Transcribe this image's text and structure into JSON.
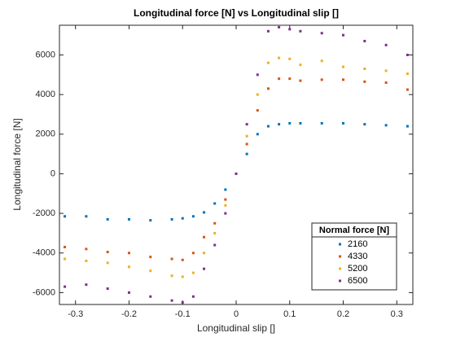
{
  "chart_data": {
    "type": "scatter",
    "title": "Longitudinal force [N] vs Longitudinal slip []",
    "x_label": "Longitudinal slip []",
    "y_label": "Longitudinal force [N]",
    "x": [
      -0.32,
      -0.28,
      -0.24,
      -0.2,
      -0.16,
      -0.12,
      -0.1,
      -0.08,
      -0.06,
      -0.04,
      -0.02,
      0,
      0.02,
      0.04,
      0.06,
      0.08,
      0.1,
      0.12,
      0.16,
      0.2,
      0.24,
      0.28,
      0.32
    ],
    "series": [
      {
        "name": "2160",
        "color": "#0072BD",
        "values": [
          -2150,
          -2150,
          -2300,
          -2300,
          -2350,
          -2300,
          -2250,
          -2150,
          -1950,
          -1500,
          -800,
          0,
          1000,
          2000,
          2400,
          2500,
          2550,
          2550,
          2550,
          2550,
          2500,
          2450,
          2400
        ]
      },
      {
        "name": "4330",
        "color": "#D95319",
        "values": [
          -3700,
          -3800,
          -3950,
          -4000,
          -4200,
          -4300,
          -4350,
          -4000,
          -3200,
          -2500,
          -1300,
          0,
          1500,
          3200,
          4300,
          4800,
          4800,
          4700,
          4750,
          4750,
          4650,
          4600,
          4250
        ]
      },
      {
        "name": "5200",
        "color": "#EDB120",
        "values": [
          -4300,
          -4400,
          -4500,
          -4700,
          -4900,
          -5150,
          -5200,
          -5000,
          -4000,
          -3000,
          -1600,
          0,
          1900,
          4000,
          5600,
          5850,
          5800,
          5500,
          5700,
          5400,
          5300,
          5200,
          5050
        ]
      },
      {
        "name": "6500",
        "color": "#7E2F8E",
        "values": [
          -5700,
          -5600,
          -5800,
          -6000,
          -6200,
          -6400,
          -6500,
          -6200,
          -4800,
          -3600,
          -2000,
          0,
          2500,
          5000,
          7200,
          7400,
          7300,
          7200,
          7100,
          7000,
          6700,
          6500,
          6000
        ]
      }
    ],
    "legend_title": "Normal force [N]",
    "xlim": [
      -0.33,
      0.33
    ],
    "xticks": [
      -0.3,
      -0.2,
      -0.1,
      0,
      0.1,
      0.2,
      0.3
    ],
    "ylim": [
      -6600,
      7500
    ],
    "yticks": [
      -6000,
      -4000,
      -2000,
      0,
      2000,
      4000,
      6000
    ],
    "grid": false,
    "legend_position": "lower-right"
  }
}
